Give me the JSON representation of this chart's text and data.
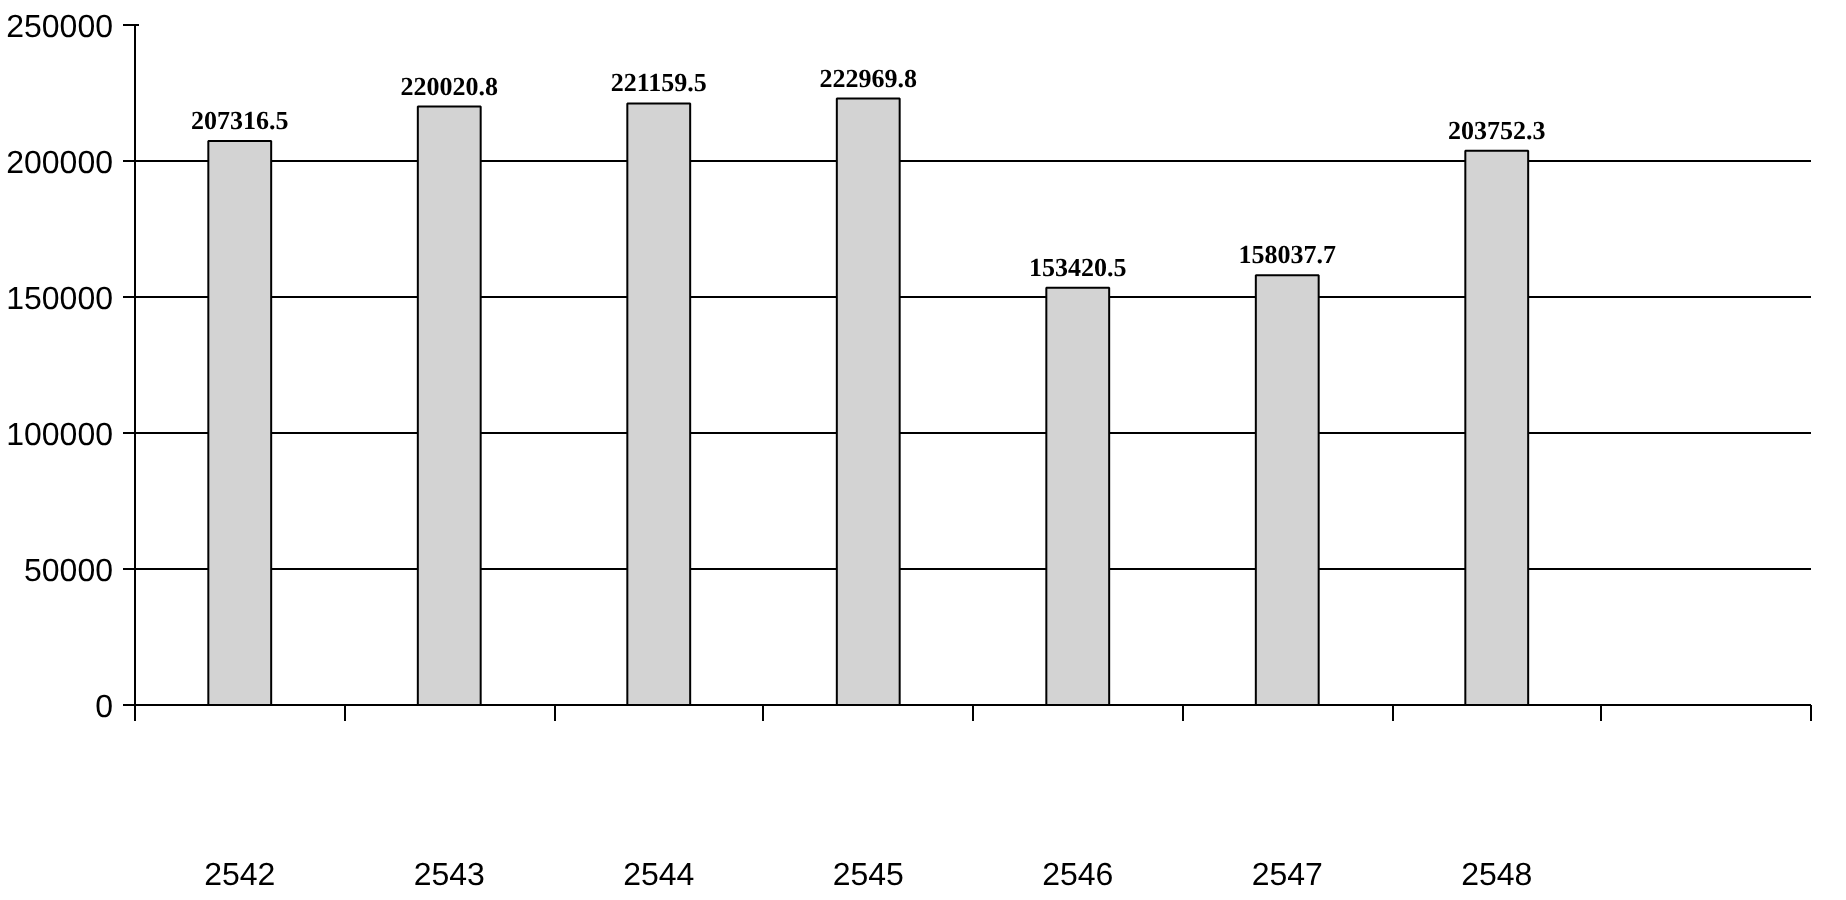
{
  "chart_data": {
    "type": "bar",
    "categories": [
      "2542",
      "2543",
      "2544",
      "2545",
      "2546",
      "2547",
      "2548",
      null
    ],
    "values": [
      207316.5,
      220020.8,
      221159.5,
      222969.8,
      153420.5,
      158037.7,
      203752.3,
      null
    ],
    "color": "#d3d3d3",
    "data_labels": true,
    "ylim": [
      0,
      250000
    ],
    "yticks": [
      0,
      50000,
      100000,
      150000,
      200000,
      250000
    ],
    "grid": "y"
  }
}
